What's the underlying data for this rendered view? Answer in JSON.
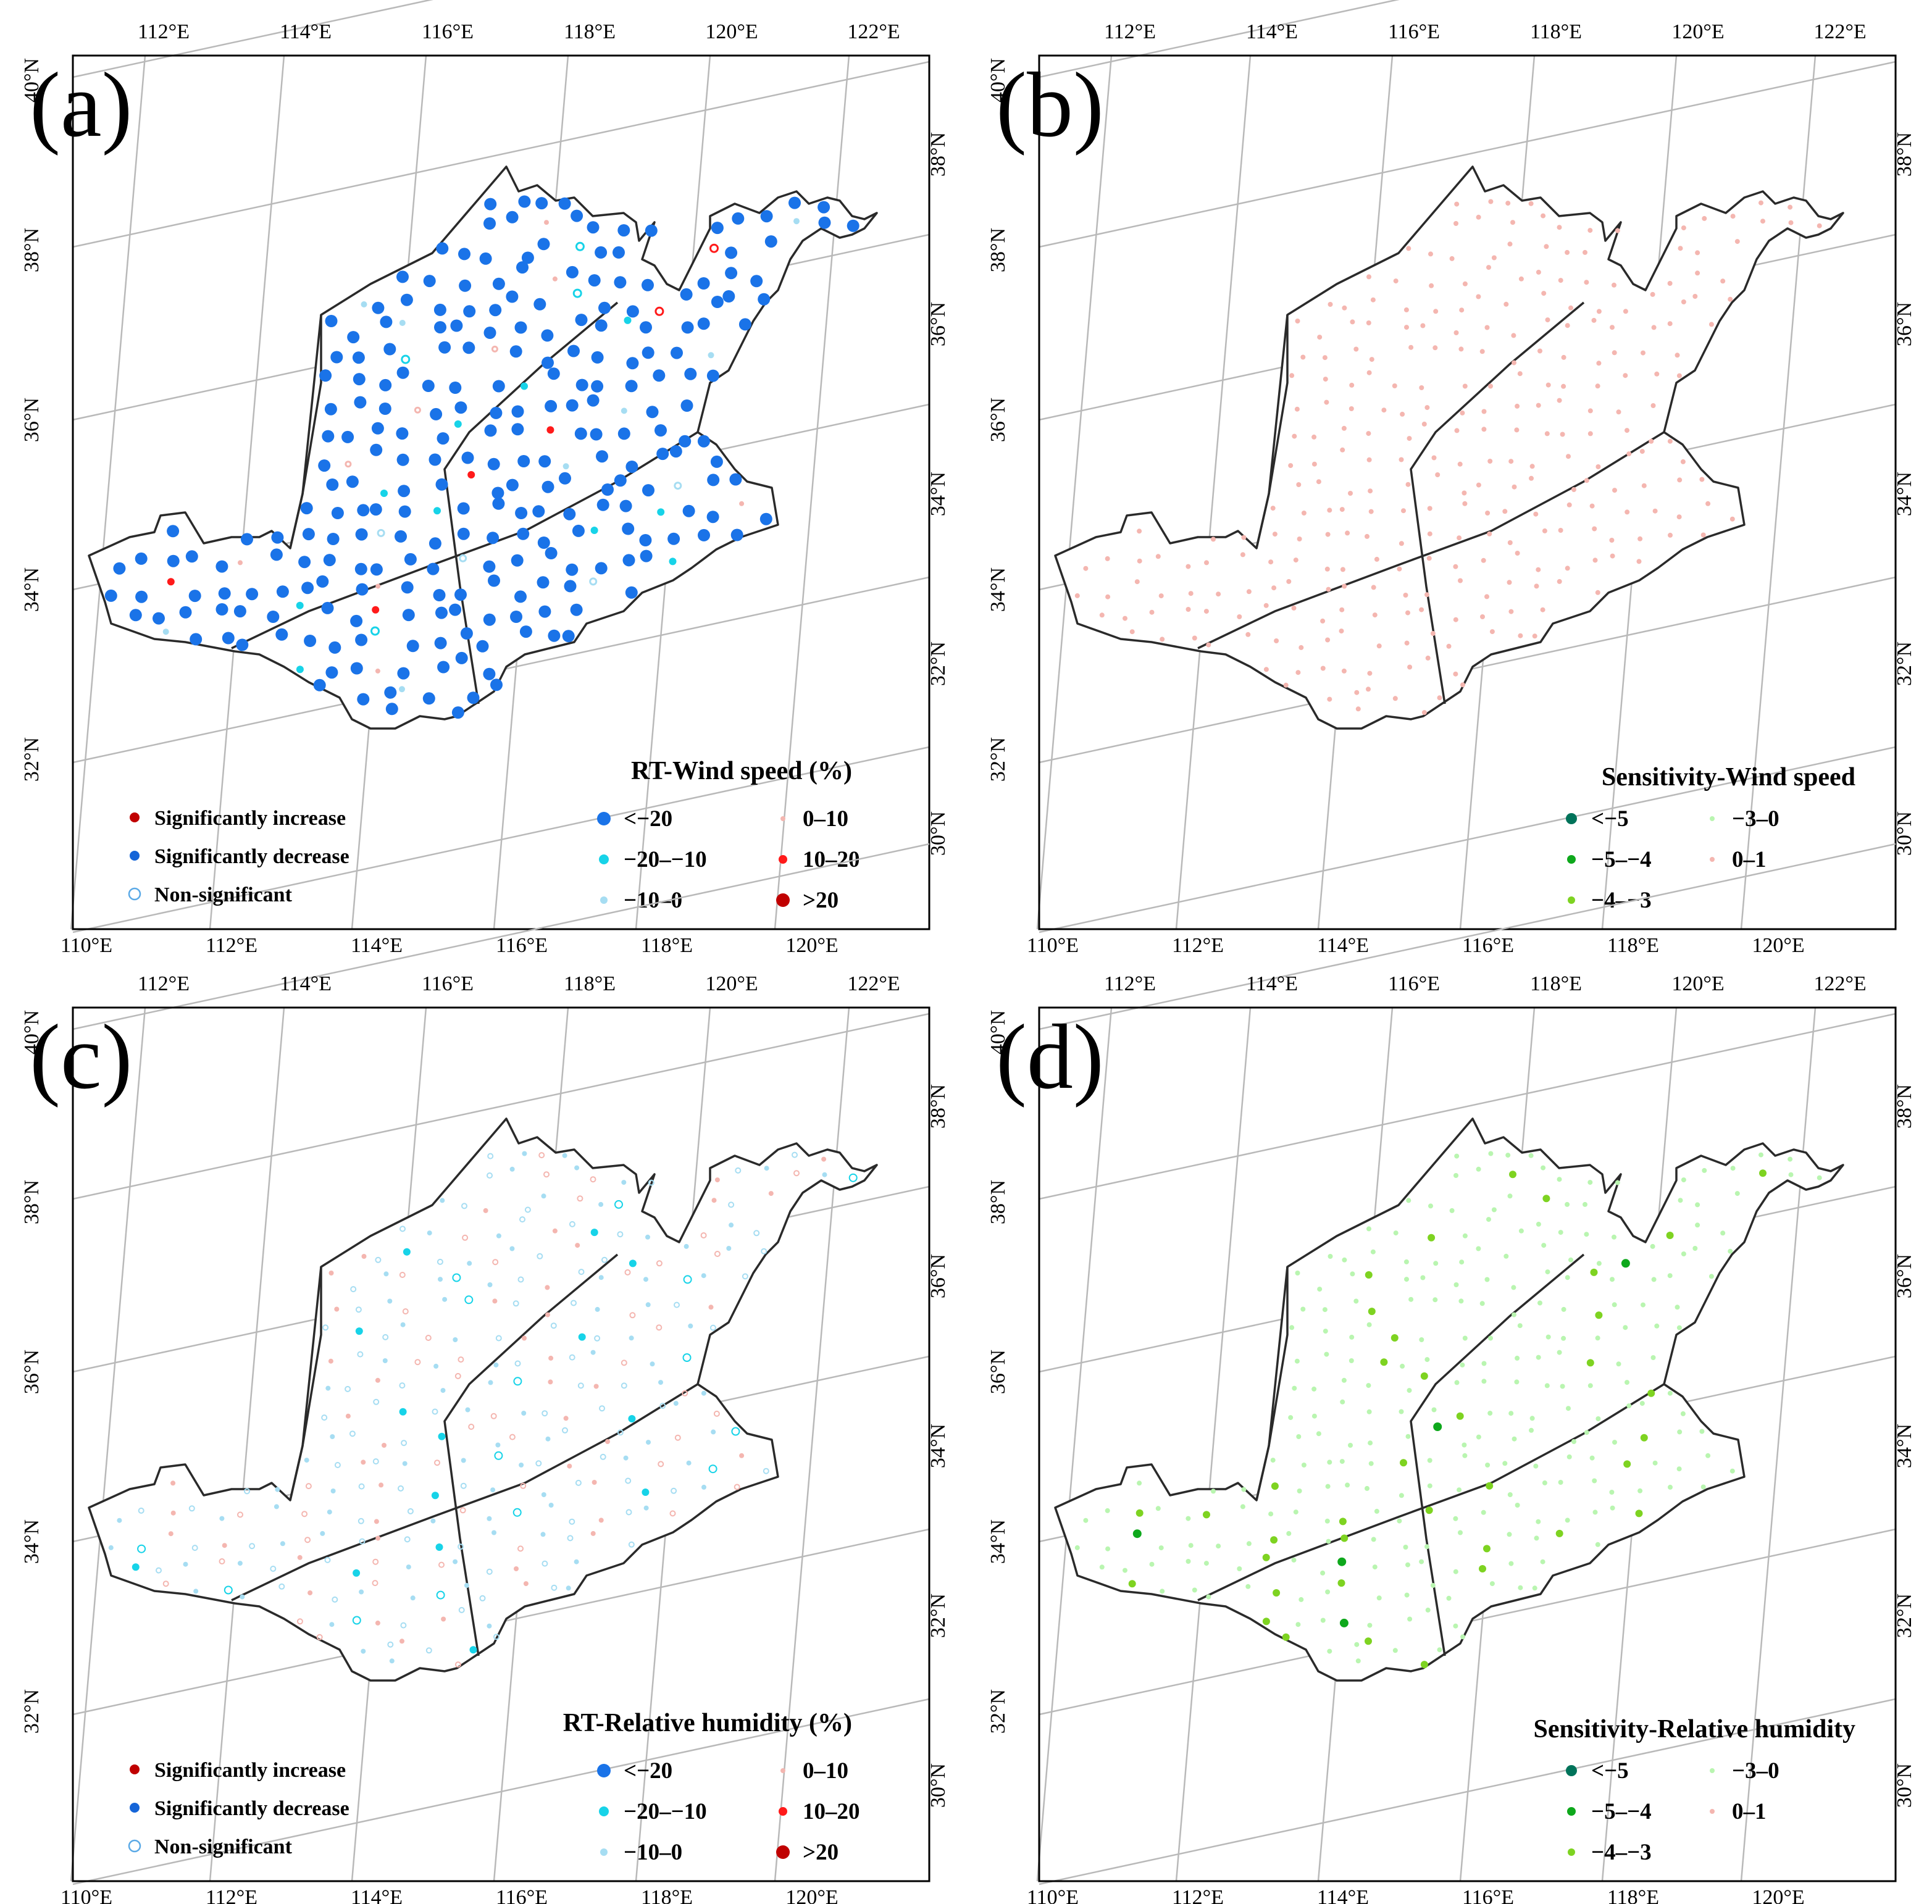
{
  "colors": {
    "sig_increase": "#c00000",
    "sig_decrease": "#1565d8",
    "non_sig": "#5aa9e6",
    "lt_m20": "#1a73e8",
    "m20_m10": "#17d3e8",
    "m10_0": "#a6ddf2",
    "p0_10": "#f4b6b0",
    "p10_20": "#ff1a1a",
    "gt_20": "#c00000",
    "s_lt_m5": "#00735a",
    "s_m5_m4": "#0ea81c",
    "s_m4_m3": "#7ed321",
    "s_m3_0": "#b9f5b0",
    "s_0_1": "#f4b6b0"
  },
  "axes": {
    "top_lon": [
      "112°E",
      "114°E",
      "116°E",
      "118°E",
      "120°E",
      "122°E"
    ],
    "bottom_lon": [
      "110°E",
      "112°E",
      "114°E",
      "116°E",
      "118°E",
      "120°E"
    ],
    "left_lat": [
      "40°N",
      "38°N",
      "36°N",
      "34°N",
      "32°N"
    ],
    "right_lat": [
      "38°N",
      "36°N",
      "34°N",
      "32°N",
      "30°N"
    ]
  },
  "panels": [
    {
      "label": "(a)",
      "legend_title": "RT-Wind speed (%)",
      "sig_legend": [
        "Significantly increase",
        "Significantly decrease",
        "Non-significant"
      ],
      "class_legend": [
        "<−20",
        "−20–−10",
        "−10–0",
        "0–10",
        "10–20",
        ">20"
      ],
      "dominant_class": "lt_m20"
    },
    {
      "label": "(b)",
      "legend_title": "Sensitivity-Wind speed",
      "class_legend": [
        "<−5",
        "−5–−4",
        "−4–−3",
        "−3–0",
        "0–1"
      ],
      "dominant_class": "s_0_1"
    },
    {
      "label": "(c)",
      "legend_title": "RT-Relative humidity (%)",
      "sig_legend": [
        "Significantly increase",
        "Significantly decrease",
        "Non-significant"
      ],
      "class_legend": [
        "<−20",
        "−20–−10",
        "−10–0",
        "0–10",
        "10–20",
        ">20"
      ],
      "dominant_class": "m10_0"
    },
    {
      "label": "(d)",
      "legend_title": "Sensitivity-Relative humidity",
      "class_legend": [
        "<−5",
        "−5–−4",
        "−4–−3",
        "−3–0",
        "0–1"
      ],
      "dominant_class": "s_m3_0"
    }
  ]
}
